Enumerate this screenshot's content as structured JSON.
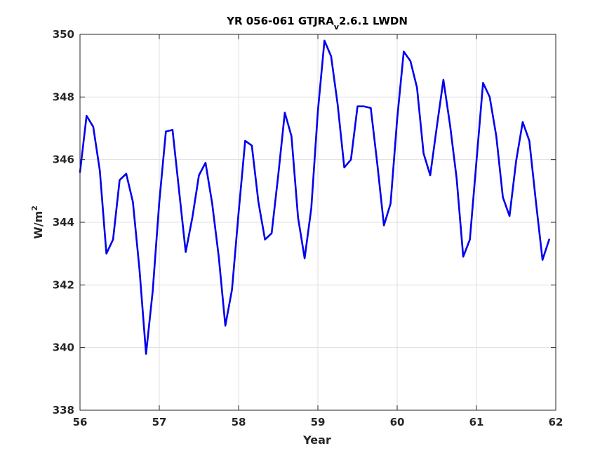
{
  "chart_data": {
    "type": "line",
    "title_main": "YR 056-061 GTJRA",
    "title_sub": "v",
    "title_tail": "2.6.1 LWDN",
    "xlabel": "Year",
    "ylabel_main": "W/m",
    "ylabel_sup": "2",
    "xlim": [
      56,
      62
    ],
    "ylim": [
      338,
      350
    ],
    "xticks": [
      56,
      57,
      58,
      59,
      60,
      61,
      62
    ],
    "yticks": [
      338,
      340,
      342,
      344,
      346,
      348,
      350
    ],
    "grid": true,
    "line_color": "#0000ee",
    "x": [
      56.0,
      56.083,
      56.167,
      56.25,
      56.333,
      56.417,
      56.5,
      56.583,
      56.667,
      56.75,
      56.833,
      56.917,
      57.0,
      57.083,
      57.167,
      57.25,
      57.333,
      57.417,
      57.5,
      57.583,
      57.667,
      57.75,
      57.833,
      57.917,
      58.0,
      58.083,
      58.167,
      58.25,
      58.333,
      58.417,
      58.5,
      58.583,
      58.667,
      58.75,
      58.833,
      58.917,
      59.0,
      59.083,
      59.167,
      59.25,
      59.333,
      59.417,
      59.5,
      59.583,
      59.667,
      59.75,
      59.833,
      59.917,
      60.0,
      60.083,
      60.167,
      60.25,
      60.333,
      60.417,
      60.5,
      60.583,
      60.667,
      60.75,
      60.833,
      60.917,
      61.0,
      61.083,
      61.167,
      61.25,
      61.333,
      61.417,
      61.5,
      61.583,
      61.667,
      61.75,
      61.833,
      61.917
    ],
    "y": [
      345.6,
      347.4,
      347.05,
      345.65,
      343.0,
      343.45,
      345.35,
      345.55,
      344.65,
      342.5,
      339.8,
      341.8,
      344.65,
      346.9,
      346.95,
      345.0,
      343.05,
      344.15,
      345.5,
      345.9,
      344.6,
      342.9,
      340.7,
      341.85,
      344.3,
      346.6,
      346.45,
      344.65,
      343.45,
      343.65,
      345.5,
      347.5,
      346.75,
      344.15,
      342.85,
      344.45,
      347.55,
      349.8,
      349.3,
      347.75,
      345.75,
      346.0,
      347.7,
      347.7,
      347.65,
      345.85,
      343.9,
      344.6,
      347.3,
      349.45,
      349.15,
      348.3,
      346.2,
      345.5,
      347.05,
      348.55,
      347.1,
      345.4,
      342.9,
      343.45,
      345.95,
      348.45,
      348.0,
      346.75,
      344.8,
      344.2,
      345.95,
      347.2,
      346.6,
      344.65,
      342.8,
      343.45
    ]
  }
}
